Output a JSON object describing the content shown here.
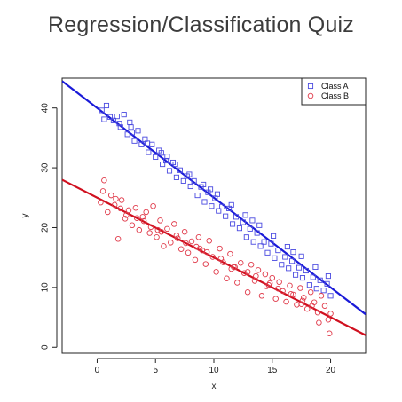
{
  "title": "Regression/Classification Quiz",
  "chart_data": {
    "type": "scatter",
    "xlabel": "x",
    "ylabel": "y",
    "xlim": [
      -3,
      23
    ],
    "ylim": [
      -1,
      45
    ],
    "xticks": [
      "0",
      "5",
      "10",
      "15",
      "20"
    ],
    "yticks": [
      "0",
      "10",
      "20",
      "30",
      "40"
    ],
    "legend_position": "top-right",
    "grid": false,
    "series": [
      {
        "name": "Class A",
        "marker": "square",
        "color": "#4a4ae0",
        "line_color": "#1a1ad8",
        "fit": {
          "intercept": 40.0,
          "slope": -1.5
        },
        "x": [
          0.4,
          0.8,
          1.1,
          1.4,
          1.7,
          2.0,
          2.3,
          2.6,
          2.9,
          3.2,
          3.5,
          3.8,
          4.1,
          4.4,
          4.7,
          5.0,
          5.3,
          5.6,
          5.9,
          6.2,
          6.5,
          6.8,
          7.1,
          7.4,
          7.7,
          8.0,
          8.3,
          8.6,
          8.9,
          9.2,
          9.5,
          9.8,
          10.1,
          10.4,
          10.7,
          11.0,
          11.3,
          11.6,
          11.9,
          12.2,
          12.5,
          12.8,
          13.1,
          13.4,
          13.7,
          14.0,
          14.3,
          14.6,
          14.9,
          15.2,
          15.5,
          15.8,
          16.1,
          16.4,
          16.7,
          17.0,
          17.3,
          17.6,
          17.9,
          18.2,
          18.5,
          18.8,
          19.1,
          19.4,
          19.7,
          20.0,
          0.6,
          1.9,
          3.0,
          4.3,
          5.5,
          6.7,
          7.9,
          9.1,
          10.3,
          11.5,
          12.7,
          13.9,
          15.1,
          16.3,
          17.5,
          18.7,
          19.8,
          2.8,
          6.0,
          9.7,
          13.3,
          16.8
        ],
        "y": [
          39.6,
          40.4,
          38.5,
          37.9,
          38.6,
          36.8,
          38.9,
          35.6,
          36.8,
          34.5,
          36.2,
          33.9,
          34.8,
          32.6,
          33.9,
          31.8,
          32.9,
          30.6,
          31.2,
          29.5,
          30.9,
          28.4,
          29.6,
          27.8,
          28.6,
          26.9,
          27.8,
          25.4,
          26.8,
          24.3,
          25.9,
          23.6,
          24.9,
          22.8,
          23.5,
          21.9,
          23.2,
          20.6,
          21.8,
          19.9,
          20.9,
          18.4,
          19.8,
          17.6,
          19.1,
          16.9,
          17.6,
          15.8,
          17.3,
          14.9,
          16.2,
          13.8,
          15.1,
          13.2,
          14.4,
          12.1,
          13.3,
          11.6,
          12.8,
          10.4,
          11.7,
          9.8,
          11.2,
          9.5,
          10.6,
          8.6,
          38.1,
          37.4,
          35.9,
          34.1,
          32.5,
          30.6,
          28.9,
          27.2,
          25.6,
          23.8,
          22.1,
          20.4,
          18.6,
          16.8,
          15.2,
          13.4,
          11.9,
          37.6,
          31.9,
          26.4,
          21.2,
          15.9
        ]
      },
      {
        "name": "Class B",
        "marker": "circle",
        "color": "#e03a4a",
        "line_color": "#d0101f",
        "fit": {
          "intercept": 25.0,
          "slope": -1.0
        },
        "x": [
          0.3,
          0.6,
          0.9,
          1.2,
          1.5,
          1.8,
          2.1,
          2.4,
          2.7,
          3.0,
          3.3,
          3.6,
          3.9,
          4.2,
          4.5,
          4.8,
          5.1,
          5.4,
          5.7,
          6.0,
          6.3,
          6.6,
          6.9,
          7.2,
          7.5,
          7.8,
          8.1,
          8.4,
          8.7,
          9.0,
          9.3,
          9.6,
          9.9,
          10.2,
          10.5,
          10.8,
          11.1,
          11.4,
          11.7,
          12.0,
          12.3,
          12.6,
          12.9,
          13.2,
          13.5,
          13.8,
          14.1,
          14.4,
          14.7,
          15.0,
          15.3,
          15.6,
          15.9,
          16.2,
          16.5,
          16.8,
          17.1,
          17.4,
          17.7,
          18.0,
          18.3,
          18.6,
          18.9,
          19.2,
          19.5,
          19.8,
          0.5,
          1.6,
          2.0,
          3.4,
          4.0,
          4.6,
          5.2,
          6.8,
          7.6,
          8.8,
          9.4,
          10.6,
          11.8,
          12.9,
          13.6,
          14.8,
          15.5,
          16.6,
          17.6,
          18.4,
          19.0,
          19.9,
          20.0,
          2.5,
          5.5,
          8.5,
          11.5,
          14.5,
          17.5
        ],
        "y": [
          24.2,
          27.9,
          22.6,
          25.4,
          23.8,
          18.1,
          24.6,
          21.5,
          22.9,
          20.4,
          23.3,
          19.6,
          21.8,
          22.6,
          19.1,
          23.6,
          18.4,
          21.2,
          16.9,
          19.8,
          17.5,
          20.6,
          18.2,
          16.4,
          19.3,
          15.8,
          17.7,
          14.6,
          18.4,
          16.2,
          13.9,
          17.8,
          15.1,
          12.6,
          16.5,
          14.2,
          11.5,
          15.6,
          13.4,
          10.8,
          14.1,
          12.4,
          9.2,
          13.8,
          11.1,
          12.9,
          8.6,
          12.2,
          10.4,
          11.6,
          8.1,
          10.9,
          9.4,
          7.6,
          10.3,
          8.8,
          7.1,
          9.9,
          8.3,
          6.4,
          9.2,
          7.5,
          5.8,
          8.6,
          6.9,
          4.6,
          26.1,
          24.8,
          23.2,
          21.6,
          21.1,
          20.1,
          19.6,
          18.7,
          17.4,
          16.5,
          15.9,
          14.8,
          13.4,
          12.6,
          11.9,
          10.7,
          9.8,
          8.9,
          7.8,
          6.9,
          4.1,
          2.3,
          5.6,
          22.1,
          19.3,
          16.8,
          13.1,
          10.2,
          7.2
        ]
      }
    ]
  }
}
